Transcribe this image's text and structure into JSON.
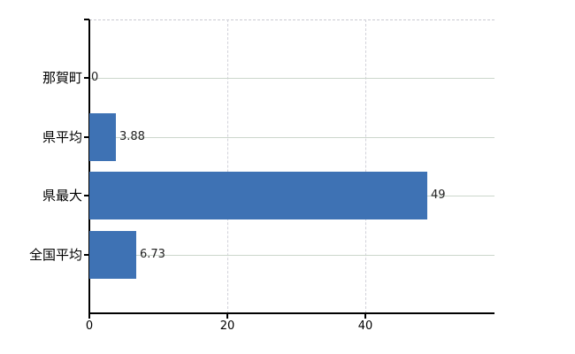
{
  "chart_data": {
    "type": "bar",
    "orientation": "horizontal",
    "title": "",
    "xlabel": "",
    "ylabel": "",
    "categories": [
      "那賀町",
      "県平均",
      "県最大",
      "全国平均"
    ],
    "values": [
      0,
      3.88,
      49,
      6.73
    ],
    "value_labels": [
      "0",
      "3.88",
      "49",
      "6.73"
    ],
    "x_ticks": [
      0,
      20,
      40
    ],
    "x_tick_labels": [
      "0",
      "20",
      "40"
    ],
    "xlim": [
      0,
      58.7
    ],
    "grid": {
      "horizontal": true,
      "vertical": true,
      "vertical_style": "dashed",
      "horizontal_style": "solid"
    },
    "legend": false
  },
  "colors": {
    "background": "#ffffff",
    "bar": "#3e72b4",
    "h_gridline": "#ccd6cc",
    "v_gridline": "#d2d2da",
    "plot_top_border": "#c9c9d2",
    "axis": "#000000",
    "category_text": "#000000",
    "value_text": "#222222",
    "tick_text": "#000000"
  }
}
